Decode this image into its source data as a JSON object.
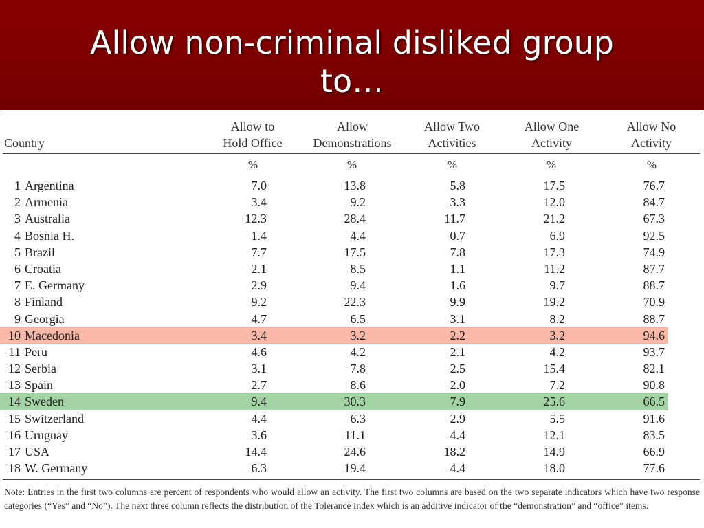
{
  "title": {
    "line1": "Allow non-criminal disliked group",
    "line2": "to…"
  },
  "table": {
    "headers": {
      "country": "Country",
      "hold_office": [
        "Allow to",
        "Hold Office"
      ],
      "demonstrations": [
        "Allow",
        "Demonstrations"
      ],
      "two_activities": [
        "Allow Two",
        "Activities"
      ],
      "one_activity": [
        "Allow One",
        "Activity"
      ],
      "no_activity": [
        "Allow No",
        "Activity"
      ]
    },
    "units": [
      "%",
      "%",
      "%",
      "%",
      "%"
    ],
    "rows": [
      {
        "num": "1",
        "country": "Argentina",
        "values": [
          "7.0",
          "13.8",
          "5.8",
          "17.5",
          "76.7"
        ],
        "highlight": ""
      },
      {
        "num": "2",
        "country": "Armenia",
        "values": [
          "3.4",
          "9.2",
          "3.3",
          "12.0",
          "84.7"
        ],
        "highlight": ""
      },
      {
        "num": "3",
        "country": "Australia",
        "values": [
          "12.3",
          "28.4",
          "11.7",
          "21.2",
          "67.3"
        ],
        "highlight": ""
      },
      {
        "num": "4",
        "country": "Bosnia H.",
        "values": [
          "1.4",
          "4.4",
          "0.7",
          "6.9",
          "92.5"
        ],
        "highlight": ""
      },
      {
        "num": "5",
        "country": "Brazil",
        "values": [
          "7.7",
          "17.5",
          "7.8",
          "17.3",
          "74.9"
        ],
        "highlight": ""
      },
      {
        "num": "6",
        "country": "Croatia",
        "values": [
          "2.1",
          "8.5",
          "1.1",
          "11.2",
          "87.7"
        ],
        "highlight": ""
      },
      {
        "num": "7",
        "country": "E. Germany",
        "values": [
          "2.9",
          "9.4",
          "1.6",
          "9.7",
          "88.7"
        ],
        "highlight": ""
      },
      {
        "num": "8",
        "country": "Finland",
        "values": [
          "9.2",
          "22.3",
          "9.9",
          "19.2",
          "70.9"
        ],
        "highlight": ""
      },
      {
        "num": "9",
        "country": "Georgia",
        "values": [
          "4.7",
          "6.5",
          "3.1",
          "8.2",
          "88.7"
        ],
        "highlight": ""
      },
      {
        "num": "10",
        "country": "Macedonia",
        "values": [
          "3.4",
          "3.2",
          "2.2",
          "3.2",
          "94.6"
        ],
        "highlight": "red"
      },
      {
        "num": "11",
        "country": "Peru",
        "values": [
          "4.6",
          "4.2",
          "2.1",
          "4.2",
          "93.7"
        ],
        "highlight": ""
      },
      {
        "num": "12",
        "country": "Serbia",
        "values": [
          "3.1",
          "7.8",
          "2.5",
          "15.4",
          "82.1"
        ],
        "highlight": ""
      },
      {
        "num": "13",
        "country": "Spain",
        "values": [
          "2.7",
          "8.6",
          "2.0",
          "7.2",
          "90.8"
        ],
        "highlight": ""
      },
      {
        "num": "14",
        "country": "Sweden",
        "values": [
          "9.4",
          "30.3",
          "7.9",
          "25.6",
          "66.5"
        ],
        "highlight": "green"
      },
      {
        "num": "15",
        "country": "Switzerland",
        "values": [
          "4.4",
          "6.3",
          "2.9",
          "5.5",
          "91.6"
        ],
        "highlight": ""
      },
      {
        "num": "16",
        "country": "Uruguay",
        "values": [
          "3.6",
          "11.1",
          "4.4",
          "12.1",
          "83.5"
        ],
        "highlight": ""
      },
      {
        "num": "17",
        "country": "USA",
        "values": [
          "14.4",
          "24.6",
          "18.2",
          "14.9",
          "66.9"
        ],
        "highlight": ""
      },
      {
        "num": "18",
        "country": "W. Germany",
        "values": [
          "6.3",
          "19.4",
          "4.4",
          "18.0",
          "77.6"
        ],
        "highlight": ""
      }
    ],
    "note": "Note: Entries in the first two columns are percent of respondents who would allow an activity. The first two columns are based on the two separate indicators which have two response categories (“Yes” and “No”). The next three column reflects the distribution of the Tolerance Index which is an additive indicator of the “demonstration” and “office” items."
  },
  "colors": {
    "title_bg": "#7a0000",
    "highlight_red": "#f9b7a7",
    "highlight_green": "#a3d3a5"
  }
}
